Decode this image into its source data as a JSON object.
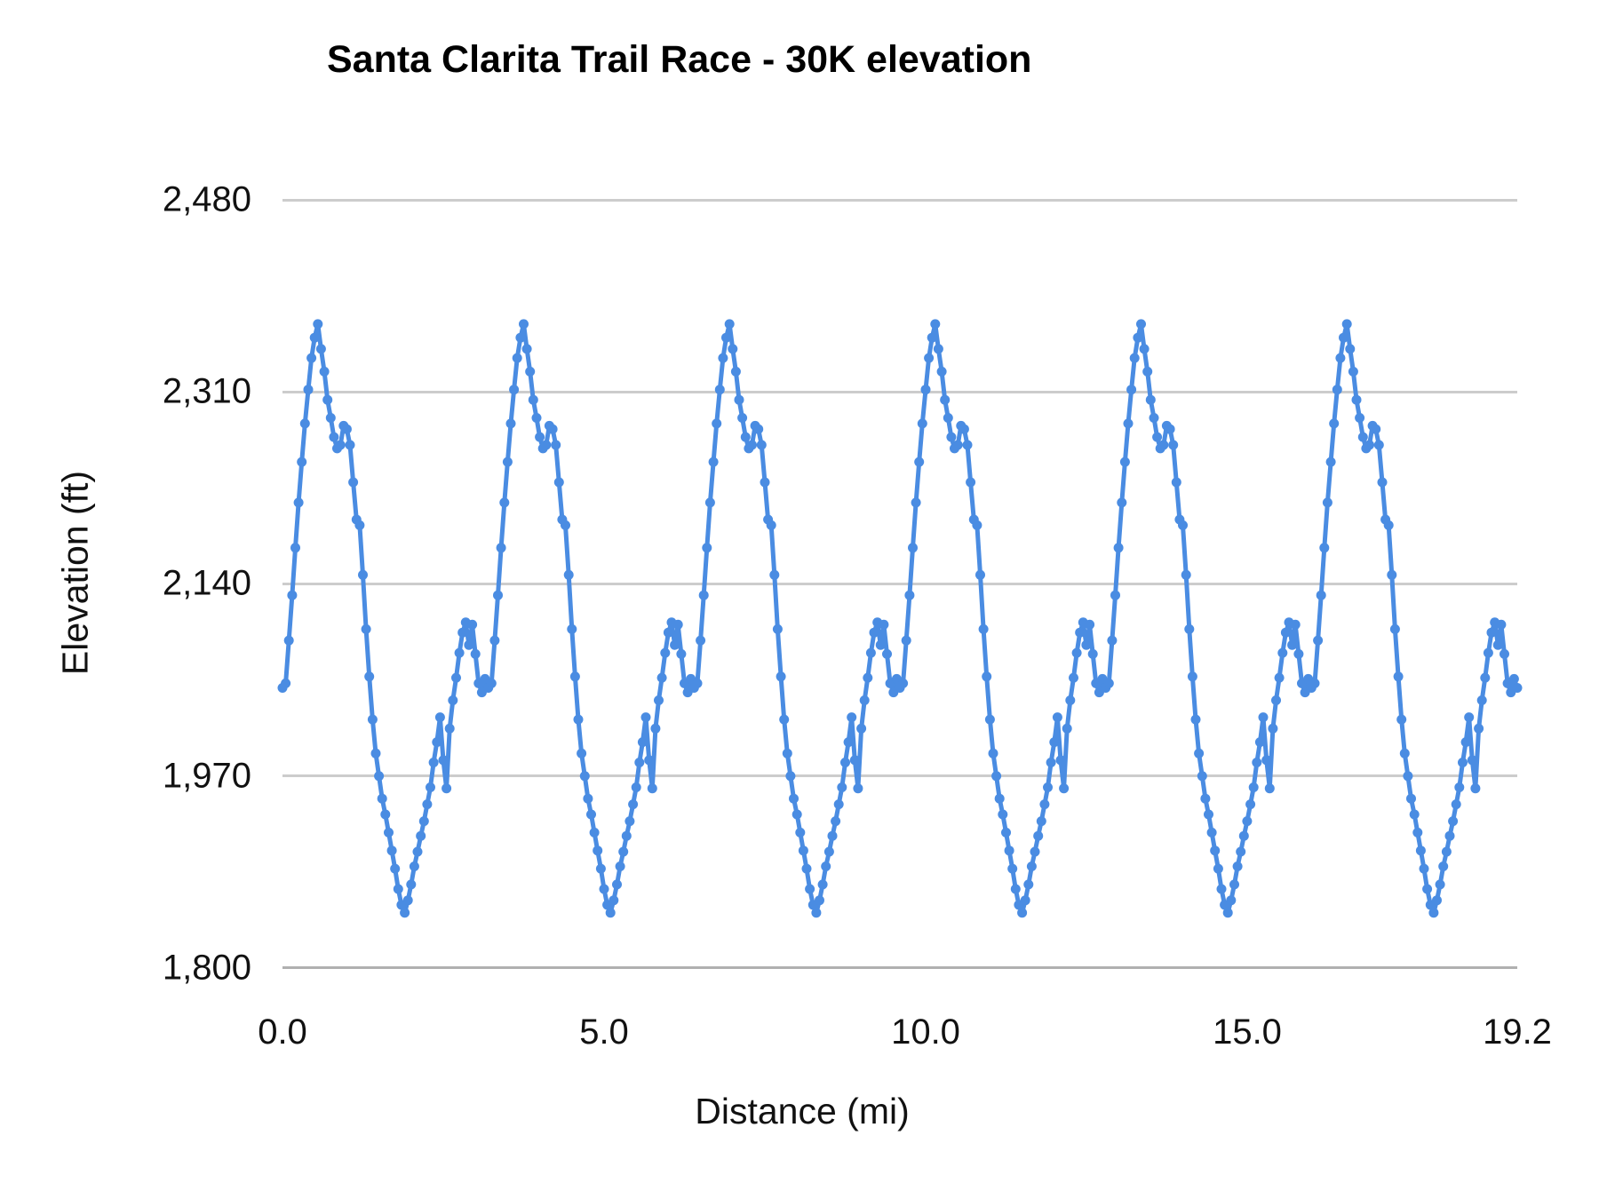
{
  "chart_data": {
    "type": "line",
    "title": "Santa Clarita Trail Race - 30K elevation",
    "xlabel": "Distance (mi)",
    "ylabel": "Elevation (ft)",
    "x_range_mi": [
      0,
      19.2
    ],
    "y_range_ft": [
      1800,
      2480
    ],
    "x_tick_labels": [
      "0.0",
      "5.0",
      "10.0",
      "15.0",
      "19.2"
    ],
    "x_tick_values": [
      0,
      5,
      10,
      15,
      19.2
    ],
    "y_tick_labels": [
      "1,800",
      "1,970",
      "2,140",
      "2,310",
      "2,480"
    ],
    "y_tick_values": [
      1800,
      1970,
      2140,
      2310,
      2480
    ],
    "grid": "horizontal-only",
    "legend": "none",
    "series_color": "#4a8ce2",
    "marker": "circle",
    "laps": 6,
    "lap_distance_mi": 3.2,
    "point_spacing_mi": 0.05,
    "lap_elevation_profile_ft": [
      2048,
      2052,
      2090,
      2130,
      2172,
      2212,
      2248,
      2282,
      2312,
      2340,
      2358,
      2370,
      2348,
      2328,
      2303,
      2287,
      2270,
      2260,
      2263,
      2280,
      2277,
      2263,
      2230,
      2197,
      2192,
      2148,
      2100,
      2058,
      2020,
      1990,
      1970,
      1950,
      1936,
      1920,
      1904,
      1888,
      1870,
      1856,
      1849,
      1860,
      1874,
      1890,
      1903,
      1917,
      1930,
      1945,
      1960,
      1982,
      2000,
      2022,
      1984,
      1959,
      2012,
      2037,
      2057,
      2079,
      2097,
      2106,
      2086,
      2104,
      2078,
      2052,
      2044,
      2056
    ],
    "closing_elevation_ft": 2048
  }
}
